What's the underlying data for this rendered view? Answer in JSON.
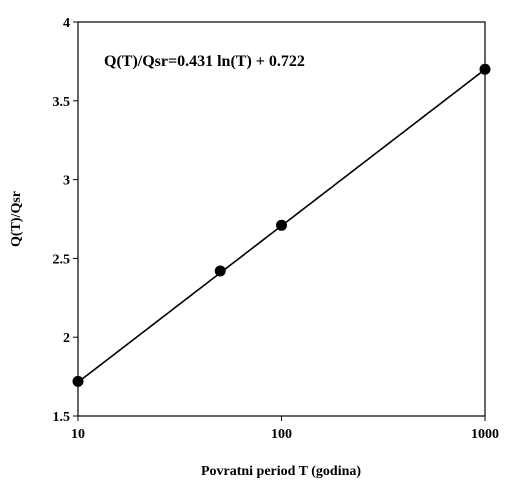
{
  "chart_data": {
    "type": "scatter",
    "xscale": "log",
    "xlim": [
      10,
      1000
    ],
    "ylim": [
      1.5,
      4
    ],
    "xticks": [
      10,
      100,
      1000
    ],
    "xtick_labels": [
      "10",
      "100",
      "1000"
    ],
    "yticks": [
      1.5,
      2,
      2.5,
      3,
      3.5,
      4
    ],
    "ytick_labels": [
      "1.5",
      "2",
      "2.5",
      "3",
      "3.5",
      "4"
    ],
    "xlabel": "Povratni period T (godina)",
    "ylabel": "Q(T)/Qsr",
    "annotation": "Q(T)/Qsr=0.431 ln(T) + 0.722",
    "grid": false,
    "legend": "none",
    "points": {
      "x": [
        10,
        50,
        100,
        1000
      ],
      "y": [
        1.72,
        2.42,
        2.71,
        3.7
      ]
    },
    "trendline": {
      "type": "logarithmic",
      "a": 0.431,
      "b": 0.722
    }
  }
}
